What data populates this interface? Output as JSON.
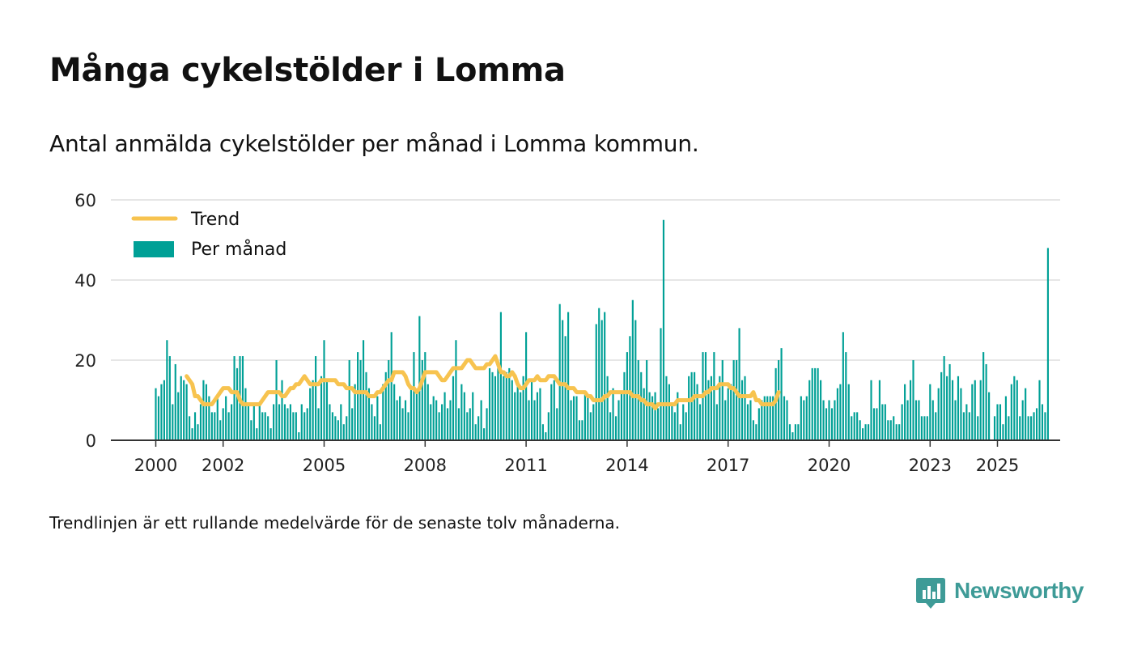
{
  "title": "Många cykelstölder i Lomma",
  "subtitle": "Antal anmälda cykelstölder per månad i Lomma kommun.",
  "footnote": "Trendlinjen är ett rullande medelvärde för de senaste tolv månaderna.",
  "brand": {
    "name": "Newsworthy",
    "icon": "newsworthy-logo-icon"
  },
  "colors": {
    "bars": "#00a096",
    "trend": "#f7c34f",
    "grid": "#dddddd",
    "axis": "#333333",
    "brand": "#3e9b97"
  },
  "chart_data": {
    "type": "bar",
    "x_unit": "month",
    "ylim": [
      0,
      60
    ],
    "yticks": [
      0,
      20,
      40,
      60
    ],
    "xticks": [
      "2000",
      "2002",
      "2005",
      "2008",
      "2011",
      "2014",
      "2017",
      "2020",
      "2023",
      "2025"
    ],
    "grid": "horizontal",
    "legend_position": "top-left",
    "series": [
      {
        "name": "Per månad",
        "type": "bar",
        "start": "2000-01",
        "values": [
          13,
          11,
          14,
          15,
          25,
          21,
          9,
          19,
          12,
          16,
          15,
          14,
          6,
          3,
          7,
          4,
          9,
          15,
          14,
          11,
          7,
          7,
          11,
          5,
          8,
          11,
          7,
          9,
          21,
          18,
          21,
          21,
          13,
          9,
          5,
          9,
          3,
          9,
          7,
          7,
          6,
          3,
          9,
          20,
          9,
          15,
          9,
          8,
          9,
          7,
          7,
          2,
          9,
          7,
          8,
          13,
          15,
          21,
          8,
          16,
          25,
          15,
          9,
          7,
          6,
          5,
          9,
          4,
          6,
          20,
          8,
          14,
          22,
          20,
          25,
          17,
          13,
          9,
          6,
          11,
          4,
          14,
          17,
          20,
          27,
          14,
          10,
          11,
          8,
          10,
          7,
          13,
          22,
          12,
          31,
          20,
          22,
          14,
          9,
          11,
          10,
          7,
          9,
          12,
          8,
          10,
          16,
          25,
          8,
          14,
          12,
          7,
          8,
          12,
          4,
          6,
          10,
          3,
          8,
          18,
          17,
          16,
          18,
          32,
          16,
          17,
          18,
          15,
          12,
          14,
          12,
          16,
          27,
          10,
          15,
          10,
          12,
          13,
          4,
          2,
          7,
          14,
          15,
          8,
          34,
          30,
          26,
          32,
          10,
          11,
          11,
          5,
          5,
          12,
          11,
          7,
          9,
          29,
          33,
          30,
          32,
          16,
          7,
          13,
          6,
          10,
          12,
          17,
          22,
          26,
          35,
          30,
          20,
          17,
          13,
          20,
          12,
          11,
          12,
          8,
          28,
          55,
          16,
          14,
          9,
          7,
          12,
          4,
          9,
          7,
          16,
          17,
          17,
          14,
          9,
          22,
          22,
          15,
          16,
          22,
          9,
          16,
          20,
          10,
          13,
          14,
          20,
          20,
          28,
          15,
          16,
          9,
          10,
          5,
          4,
          8,
          10,
          11,
          11,
          11,
          11,
          18,
          20,
          23,
          11,
          10,
          4,
          2,
          4,
          4,
          11,
          10,
          11,
          15,
          18,
          18,
          18,
          15,
          10,
          8,
          10,
          8,
          10,
          13,
          14,
          27,
          22,
          14,
          6,
          7,
          7,
          5,
          3,
          4,
          4,
          15,
          8,
          8,
          15,
          9,
          9,
          5,
          5,
          6,
          4,
          4,
          9,
          14,
          10,
          15,
          20,
          10,
          10,
          6,
          6,
          6,
          14,
          10,
          7,
          13,
          17,
          21,
          16,
          19,
          15,
          10,
          16,
          13,
          7,
          9,
          7,
          14,
          15,
          6,
          15,
          22,
          19,
          12,
          0,
          6,
          9,
          9,
          4,
          11,
          6,
          14,
          16,
          15,
          6,
          10,
          13,
          6,
          6,
          7,
          8,
          15,
          9,
          7,
          48
        ]
      },
      {
        "name": "Trend",
        "type": "line",
        "start": "2000-12",
        "values": [
          16,
          15,
          14,
          11,
          11,
          10,
          9,
          9,
          9,
          9,
          10,
          11,
          12,
          13,
          13,
          13,
          12,
          12,
          12,
          10,
          9,
          9,
          9,
          9,
          9,
          9,
          9,
          10,
          11,
          12,
          12,
          12,
          12,
          12,
          11,
          11,
          12,
          13,
          13,
          14,
          14,
          15,
          16,
          15,
          14,
          14,
          14,
          14,
          15,
          15,
          15,
          15,
          15,
          15,
          14,
          14,
          14,
          13,
          13,
          13,
          12,
          12,
          12,
          12,
          12,
          11,
          11,
          11,
          12,
          12,
          13,
          14,
          15,
          15,
          17,
          17,
          17,
          17,
          16,
          14,
          13,
          13,
          12,
          13,
          15,
          17,
          17,
          17,
          17,
          17,
          16,
          15,
          15,
          16,
          17,
          18,
          18,
          18,
          18,
          19,
          20,
          20,
          19,
          18,
          18,
          18,
          18,
          19,
          19,
          20,
          21,
          19,
          17,
          17,
          16,
          16,
          17,
          16,
          14,
          13,
          13,
          14,
          15,
          15,
          15,
          16,
          15,
          15,
          15,
          16,
          16,
          16,
          15,
          14,
          14,
          14,
          13,
          13,
          13,
          12,
          12,
          12,
          12,
          11,
          11,
          10,
          10,
          10,
          10,
          11,
          11,
          12,
          12,
          12,
          12,
          12,
          12,
          12,
          12,
          11,
          11,
          11,
          10,
          10,
          9,
          9,
          9,
          8,
          9,
          9,
          9,
          9,
          9,
          9,
          9,
          10,
          10,
          10,
          10,
          10,
          10,
          11,
          11,
          11,
          11,
          12,
          12,
          13,
          13,
          13,
          14,
          14,
          14,
          14,
          13,
          13,
          12,
          11,
          11,
          11,
          11,
          11,
          12,
          10,
          10,
          9,
          9,
          9,
          9,
          9,
          10,
          12
        ]
      }
    ]
  }
}
